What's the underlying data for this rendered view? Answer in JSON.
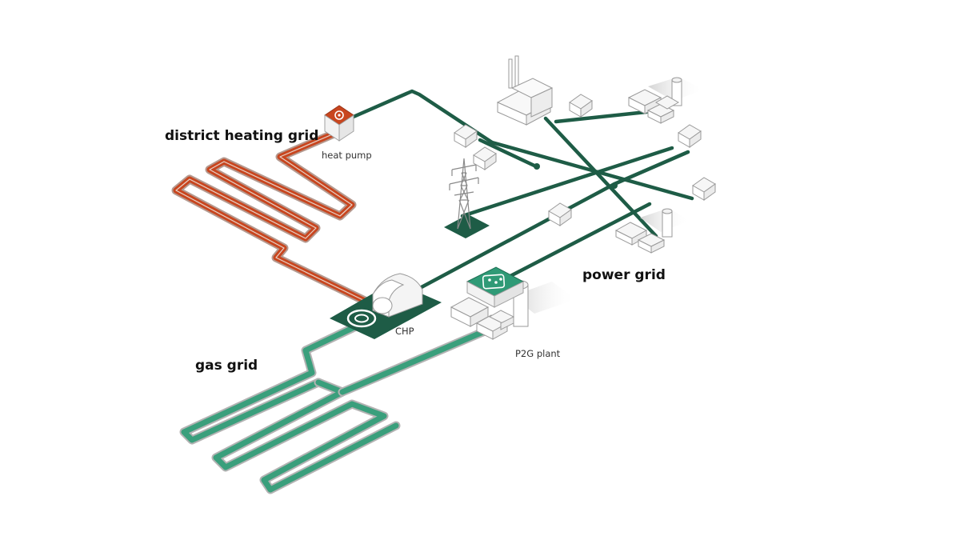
{
  "labels": {
    "district_heating_grid": "district heating grid",
    "heat_pump": "heat pump",
    "power_grid": "power grid",
    "gas_grid": "gas grid",
    "chp": "CHP",
    "p2g_plant": "P2G plant"
  },
  "colors": {
    "power_line": "#1e5c46",
    "heat_pipe": "#c8461f",
    "heat_pipe_outer": "#b59a90",
    "gas_pipe": "#3a9f7c",
    "gas_pipe_outer": "#b3b3b3",
    "chp_pad": "#1e5c46",
    "p2g_icon": "#2f9a76",
    "heat_pump_icon": "#c8461f"
  },
  "icons": [
    "heat-pump-icon",
    "chp-icon",
    "p2g-icon",
    "transmission-tower-icon",
    "power-plant-icon",
    "house-icon",
    "factory-icon"
  ]
}
